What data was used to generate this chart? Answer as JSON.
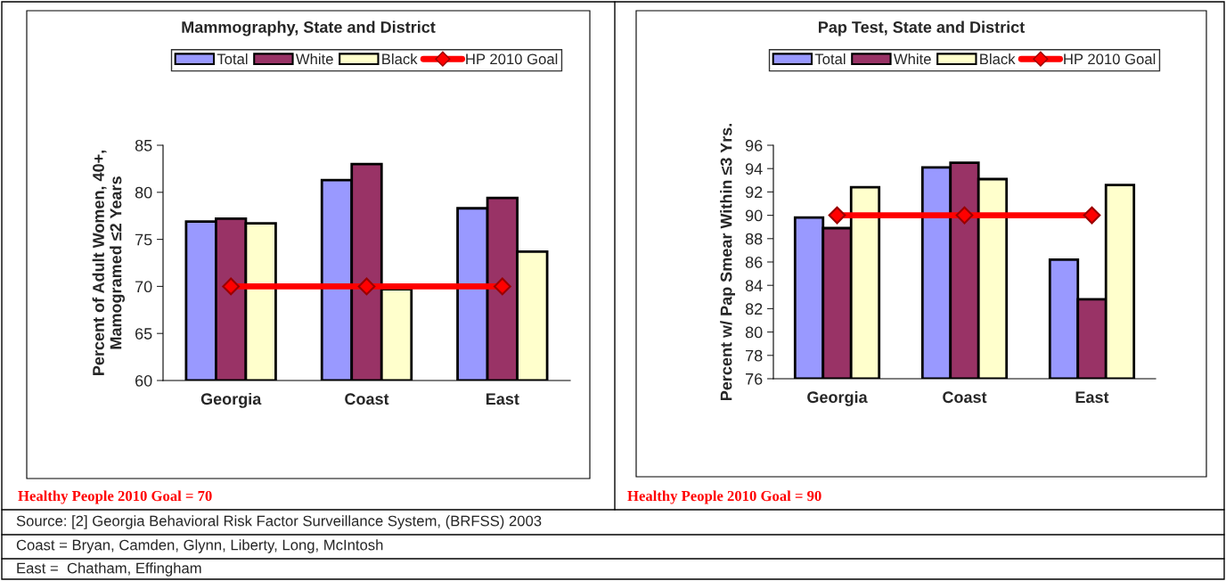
{
  "chart_data": [
    {
      "type": "bar",
      "title": "Mammography, State and District",
      "ylabel": "Percent of Adult Women, 40+,\nMamogramed ≤2 Years",
      "categories": [
        "Georgia",
        "Coast",
        "East"
      ],
      "series": [
        {
          "name": "Total",
          "color": "#9999ff",
          "values": [
            76.9,
            81.3,
            78.3
          ]
        },
        {
          "name": "White",
          "color": "#993366",
          "values": [
            77.2,
            83.0,
            79.4
          ]
        },
        {
          "name": "Black",
          "color": "#ffffcc",
          "values": [
            76.7,
            69.7,
            73.7
          ]
        },
        {
          "name": "HP 2010 Goal",
          "type": "line",
          "color": "#ff0000",
          "marker": "diamond",
          "values": [
            70,
            70,
            70
          ]
        }
      ],
      "ylim": [
        60,
        85
      ],
      "yticks": [
        60,
        65,
        70,
        75,
        80,
        85
      ],
      "grid": false,
      "legend": "top",
      "annotations": [
        "Healthy People 2010 Goal = 70",
        "Source: [2] Georgia Behavioral Risk Factor Surveillance System, (BRFSS) 2003",
        "Coast = Bryan, Camden, Glynn, Liberty, Long, McIntosh",
        "East =  Chatham, Effingham"
      ]
    },
    {
      "type": "bar",
      "title": "Pap Test, State and District",
      "ylabel": "Percent w/ Pap Smear Within ≤3 Yrs.",
      "categories": [
        "Georgia",
        "Coast",
        "East"
      ],
      "series": [
        {
          "name": "Total",
          "color": "#9999ff",
          "values": [
            89.8,
            94.1,
            86.2
          ]
        },
        {
          "name": "White",
          "color": "#993366",
          "values": [
            88.9,
            94.5,
            82.8
          ]
        },
        {
          "name": "Black",
          "color": "#ffffcc",
          "values": [
            92.4,
            93.1,
            92.6
          ]
        },
        {
          "name": "HP 2010 Goal",
          "type": "line",
          "color": "#ff0000",
          "marker": "diamond",
          "values": [
            90,
            90,
            90
          ]
        }
      ],
      "ylim": [
        76,
        96
      ],
      "yticks": [
        76,
        78,
        80,
        82,
        84,
        86,
        88,
        90,
        92,
        94,
        96
      ],
      "grid": false,
      "legend": "top",
      "annotations": [
        "Healthy People 2010 Goal = 90"
      ]
    }
  ]
}
